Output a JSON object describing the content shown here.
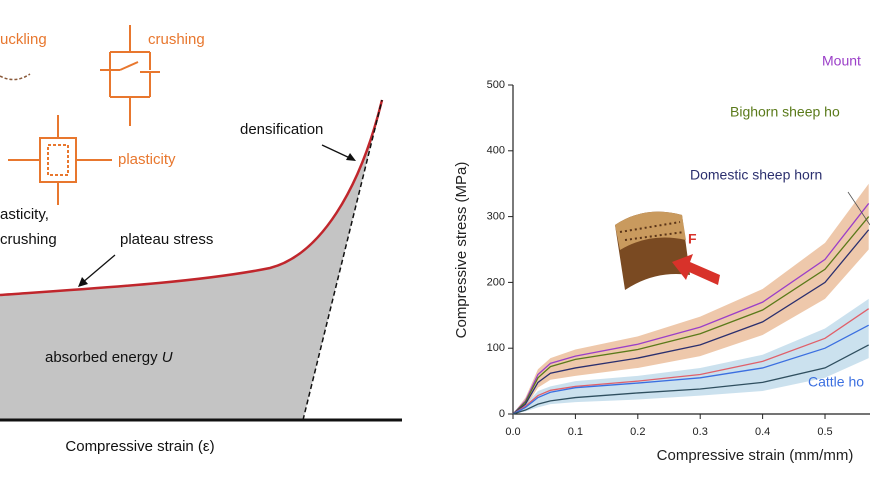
{
  "schematic": {
    "labels": {
      "buckling": "uckling",
      "crushing": "crushing",
      "plasticity": "plasticity",
      "mixed_line1": "asticity,",
      "mixed_line2": "crushing",
      "densification": "densification",
      "plateau": "plateau stress",
      "energy": "absorbed energy",
      "energy_symbol": "U",
      "x_label": "Compressive strain (ε)"
    }
  },
  "chart_data": {
    "type": "line",
    "x_label": "Compressive strain (mm/mm)",
    "y_label": "Compressive stress (MPa)",
    "inset_label": "F",
    "x": [
      0,
      0.02,
      0.04,
      0.06,
      0.1,
      0.2,
      0.3,
      0.4,
      0.5,
      0.57
    ],
    "xlim": [
      0,
      0.57
    ],
    "xticks": [
      {
        "value": 0,
        "label": "0.0"
      },
      0.1,
      0.2,
      0.3,
      0.4,
      0.5
    ],
    "ylim": [
      0,
      500
    ],
    "yticks": [
      0,
      100,
      200,
      300,
      400,
      500
    ],
    "bands": [
      {
        "color": "#e3a473",
        "lower": [
          0,
          10,
          40,
          52,
          58,
          70,
          88,
          120,
          175,
          250
        ],
        "upper": [
          0,
          25,
          68,
          85,
          98,
          118,
          148,
          190,
          260,
          350
        ]
      },
      {
        "color": "#a9cde2",
        "lower": [
          0,
          4,
          10,
          15,
          18,
          22,
          28,
          35,
          55,
          85
        ],
        "upper": [
          0,
          15,
          35,
          42,
          50,
          58,
          70,
          90,
          130,
          175
        ]
      }
    ],
    "series": [
      {
        "name": "Mount",
        "color": "#9b3fc8",
        "values": [
          0,
          20,
          60,
          77,
          88,
          106,
          132,
          170,
          235,
          320
        ]
      },
      {
        "name": "Bighorn sheep ho",
        "color": "#5a7a1a",
        "values": [
          0,
          18,
          55,
          72,
          83,
          98,
          122,
          158,
          220,
          300
        ]
      },
      {
        "name": "Domestic sheep horn",
        "color": "#2b2f6e",
        "values": [
          0,
          15,
          48,
          62,
          70,
          85,
          105,
          140,
          200,
          280
        ]
      },
      {
        "color": "#e0606a",
        "values": [
          0,
          12,
          28,
          36,
          42,
          50,
          60,
          80,
          115,
          160
        ]
      },
      {
        "name": "Cattle ho",
        "color": "#3b6fe0",
        "values": [
          0,
          10,
          25,
          33,
          40,
          47,
          55,
          70,
          100,
          135
        ]
      },
      {
        "color": "#2f4f5f",
        "values": [
          0,
          6,
          15,
          20,
          25,
          32,
          38,
          48,
          70,
          105
        ]
      }
    ]
  }
}
